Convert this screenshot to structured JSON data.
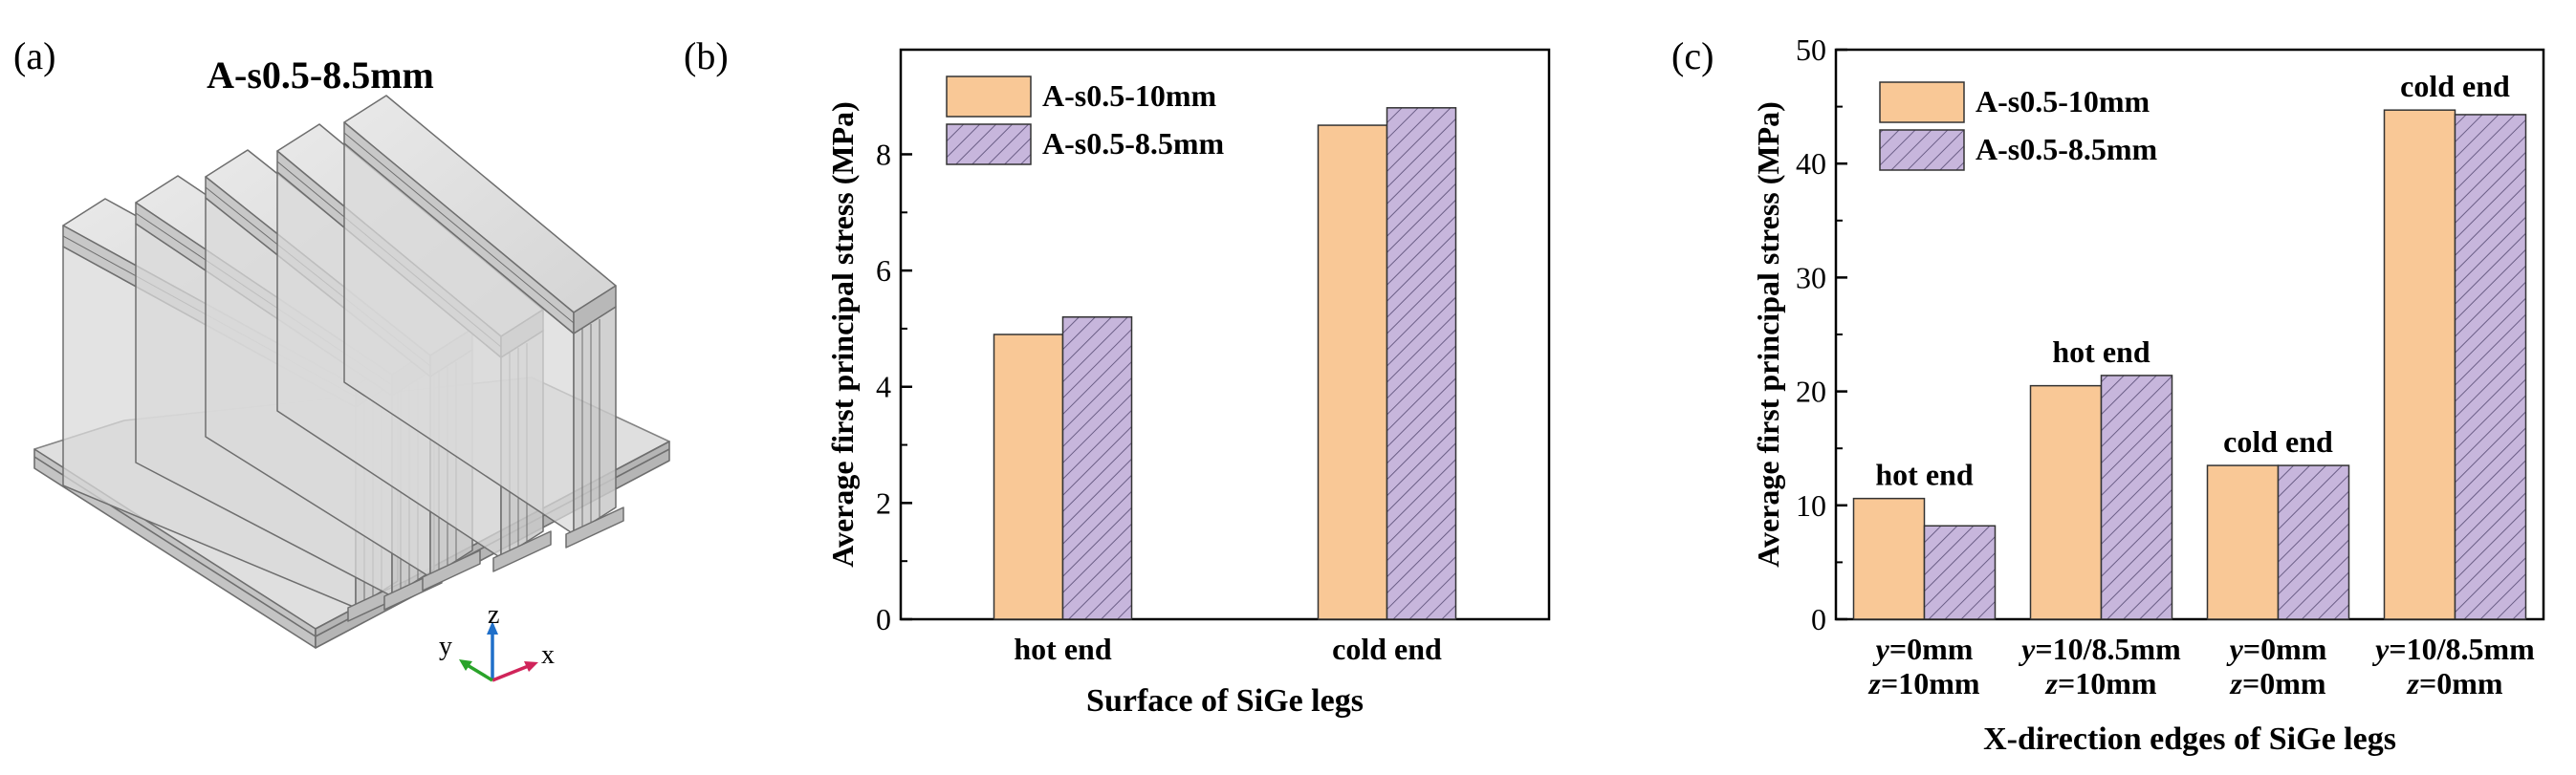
{
  "panel_a": {
    "label": "(a)",
    "title": "A-s0.5-8.5mm",
    "axes": {
      "z": "z",
      "y": "y",
      "x": "x"
    },
    "colors": {
      "z": "#1f6fc9",
      "y": "#2aa32a",
      "x": "#d0245a"
    }
  },
  "chart_data": [
    {
      "panel": "(b)",
      "type": "bar",
      "title": "",
      "xlabel": "Surface of SiGe legs",
      "ylabel": "Average first principal stress (MPa)",
      "categories": [
        "hot end",
        "cold end"
      ],
      "ylim": [
        0,
        9.8
      ],
      "yticks": [
        0,
        2,
        4,
        6,
        8
      ],
      "series": [
        {
          "name": "A-s0.5-10mm",
          "values": [
            4.9,
            8.5
          ],
          "color": "#f9c896",
          "hatch": false
        },
        {
          "name": "A-s0.5-8.5mm",
          "values": [
            5.2,
            8.8
          ],
          "color": "#c7b6dc",
          "hatch": true
        }
      ],
      "legend": "top-left",
      "grid": false
    },
    {
      "panel": "(c)",
      "type": "bar",
      "title": "",
      "xlabel": "X-direction edges of SiGe legs",
      "ylabel": "Average first principal stress (MPa)",
      "categories": [
        [
          "y=0mm",
          "z=10mm"
        ],
        [
          "y=10/8.5mm",
          "z=10mm"
        ],
        [
          "y=0mm",
          "z=0mm"
        ],
        [
          "y=10/8.5mm",
          "z=0mm"
        ]
      ],
      "annotations": [
        "hot end",
        "hot end",
        "cold end",
        "cold end"
      ],
      "ylim": [
        0,
        50
      ],
      "yticks": [
        0,
        10,
        20,
        30,
        40,
        50
      ],
      "series": [
        {
          "name": "A-s0.5-10mm",
          "values": [
            10.6,
            20.5,
            13.5,
            44.7
          ],
          "color": "#f9c896",
          "hatch": false
        },
        {
          "name": "A-s0.5-8.5mm",
          "values": [
            8.2,
            21.4,
            13.5,
            44.3
          ],
          "color": "#c7b6dc",
          "hatch": true
        }
      ],
      "legend": "top-left",
      "grid": false
    }
  ]
}
